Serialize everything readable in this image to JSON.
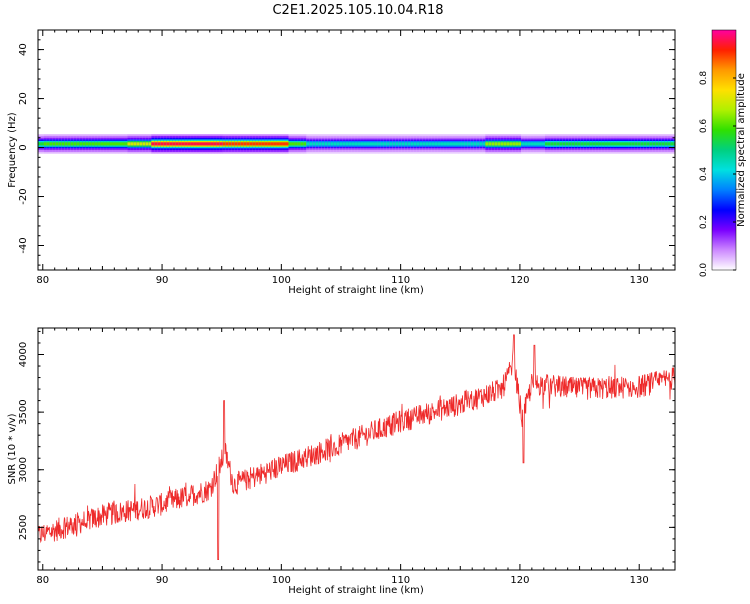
{
  "title": "C2E1.2025.105.10.04.R18",
  "chart_data": [
    {
      "type": "heatmap",
      "xlabel": "Height of straight line (km)",
      "ylabel": "Frequency (Hz)",
      "xlim": [
        79.6,
        133
      ],
      "ylim": [
        -50,
        48
      ],
      "xticks": [
        80,
        90,
        100,
        110,
        120,
        130
      ],
      "yticks": [
        -40,
        -20,
        0,
        20,
        40
      ],
      "grid": false,
      "colorbar": {
        "label": "Normalized spectral amplitude",
        "range": [
          0,
          1
        ],
        "ticks": [
          "0.0",
          "0.2",
          "0.4",
          "0.6",
          "0.8"
        ],
        "colors": [
          "#ffffff",
          "#cc88ff",
          "#7a00ff",
          "#0000ff",
          "#0080ff",
          "#00e0e0",
          "#00d080",
          "#30e000",
          "#b0f000",
          "#ffe000",
          "#ff9900",
          "#ff2000",
          "#ff00a0"
        ]
      },
      "band": {
        "center_hz": 1.5,
        "half_width_hz": 4,
        "peak_segments": [
          {
            "x0": 80,
            "x1": 87,
            "level": 0.6
          },
          {
            "x0": 87,
            "x1": 89,
            "level": 0.7
          },
          {
            "x0": 89,
            "x1": 95,
            "level": 0.95
          },
          {
            "x0": 95,
            "x1": 100.5,
            "level": 0.9
          },
          {
            "x0": 100.5,
            "x1": 102,
            "level": 0.6
          },
          {
            "x0": 102,
            "x1": 117,
            "level": 0.45
          },
          {
            "x0": 117,
            "x1": 120,
            "level": 0.65
          },
          {
            "x0": 120,
            "x1": 122,
            "level": 0.45
          },
          {
            "x0": 122,
            "x1": 133,
            "level": 0.55
          }
        ]
      }
    },
    {
      "type": "line",
      "xlabel": "Height of straight line (km)",
      "ylabel": "SNR (10 * v/v)",
      "xlim": [
        79.6,
        133
      ],
      "ylim": [
        2130,
        4230
      ],
      "xticks": [
        80,
        90,
        100,
        110,
        120,
        130
      ],
      "yticks": [
        2500,
        3000,
        3500,
        4000
      ],
      "grid": false,
      "series": [
        {
          "color": "#ee2a2a",
          "trend": [
            [
              79.6,
              2430
            ],
            [
              85,
              2600
            ],
            [
              90,
              2700
            ],
            [
              94,
              2830
            ],
            [
              95.3,
              3150
            ],
            [
              96,
              2870
            ],
            [
              100,
              3030
            ],
            [
              105,
              3220
            ],
            [
              110,
              3420
            ],
            [
              115,
              3570
            ],
            [
              118.5,
              3700
            ],
            [
              119.5,
              3920
            ],
            [
              120.2,
              3430
            ],
            [
              121,
              3750
            ],
            [
              125,
              3700
            ],
            [
              130,
              3720
            ],
            [
              133,
              3800
            ]
          ],
          "noise_amplitude": 100,
          "events": [
            {
              "x": 94.7,
              "value": 2220
            },
            {
              "x": 95.2,
              "value": 3600
            },
            {
              "x": 119.5,
              "value": 4170
            },
            {
              "x": 120.3,
              "value": 3060
            },
            {
              "x": 121.2,
              "value": 4080
            }
          ]
        }
      ]
    }
  ]
}
